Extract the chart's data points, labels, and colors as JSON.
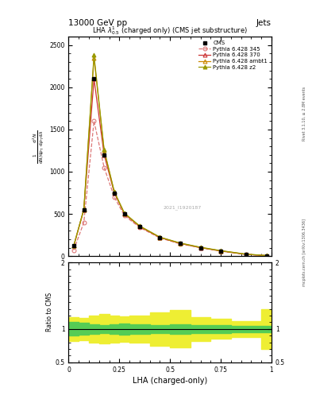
{
  "title_top": "13000 GeV pp",
  "title_right": "Jets",
  "plot_title": "LHA $\\lambda^1_{0.5}$ (charged only) (CMS jet substructure)",
  "xlabel": "LHA (charged-only)",
  "ylabel_main_lines": [
    "mathrm d$^2$N",
    "mathrm d p$_\\mathrm{T}$ mathrm d lambda",
    "",
    "1",
    "mathrm dN / mathrm d p$_\\mathrm{T}$"
  ],
  "ylabel_ratio": "Ratio to CMS",
  "rivet_label": "Rivet 3.1.10, ≥ 2.8M events",
  "mcplots_label": "mcplots.cern.ch [arXiv:1306.3436]",
  "watermark": "2021_I1920187",
  "xlim": [
    0,
    1.0
  ],
  "ylim_main": [
    0,
    2600
  ],
  "ylim_ratio": [
    0.5,
    2.0
  ],
  "cms_x": [
    0.025,
    0.075,
    0.125,
    0.175,
    0.225,
    0.275,
    0.35,
    0.45,
    0.55,
    0.65,
    0.75,
    0.875,
    0.975
  ],
  "cms_y": [
    120,
    550,
    2100,
    1200,
    750,
    500,
    350,
    220,
    150,
    100,
    60,
    20,
    5
  ],
  "p345_x": [
    0.025,
    0.075,
    0.125,
    0.175,
    0.225,
    0.275,
    0.35,
    0.45,
    0.55,
    0.65,
    0.75,
    0.875,
    0.975
  ],
  "p345_y": [
    70,
    400,
    1600,
    1050,
    700,
    480,
    340,
    215,
    145,
    100,
    60,
    20,
    5
  ],
  "p370_x": [
    0.025,
    0.075,
    0.125,
    0.175,
    0.225,
    0.275,
    0.35,
    0.45,
    0.55,
    0.65,
    0.75,
    0.875,
    0.975
  ],
  "p370_y": [
    120,
    550,
    2100,
    1200,
    750,
    500,
    350,
    220,
    150,
    100,
    60,
    20,
    5
  ],
  "pambt1_x": [
    0.025,
    0.075,
    0.125,
    0.175,
    0.225,
    0.275,
    0.35,
    0.45,
    0.55,
    0.65,
    0.75,
    0.875,
    0.975
  ],
  "pambt1_y": [
    120,
    550,
    2350,
    1250,
    760,
    505,
    355,
    222,
    152,
    102,
    62,
    22,
    6
  ],
  "pz2_x": [
    0.025,
    0.075,
    0.125,
    0.175,
    0.225,
    0.275,
    0.35,
    0.45,
    0.55,
    0.65,
    0.75,
    0.875,
    0.975
  ],
  "pz2_y": [
    120,
    560,
    2380,
    1260,
    765,
    510,
    358,
    225,
    155,
    105,
    65,
    23,
    7
  ],
  "bin_edges": [
    0.0,
    0.05,
    0.1,
    0.15,
    0.2,
    0.25,
    0.3,
    0.4,
    0.5,
    0.6,
    0.7,
    0.8,
    0.95,
    1.0
  ],
  "ratio_green_lo": [
    0.9,
    0.91,
    0.93,
    0.94,
    0.93,
    0.92,
    0.93,
    0.94,
    0.93,
    0.94,
    0.94,
    0.95,
    0.95
  ],
  "ratio_green_hi": [
    1.1,
    1.09,
    1.07,
    1.06,
    1.07,
    1.08,
    1.07,
    1.06,
    1.07,
    1.06,
    1.06,
    1.05,
    1.05
  ],
  "ratio_yellow_lo": [
    0.82,
    0.83,
    0.8,
    0.78,
    0.8,
    0.81,
    0.8,
    0.75,
    0.72,
    0.82,
    0.85,
    0.88,
    0.7
  ],
  "ratio_yellow_hi": [
    1.18,
    1.17,
    1.2,
    1.22,
    1.2,
    1.19,
    1.2,
    1.25,
    1.28,
    1.18,
    1.15,
    1.12,
    1.3
  ],
  "color_cms": "#000000",
  "color_345": "#dd7777",
  "color_370": "#cc3333",
  "color_ambt1": "#cc8800",
  "color_z2": "#999900",
  "color_green": "#55cc55",
  "color_yellow": "#eeee33",
  "bg_color": "#ffffff"
}
